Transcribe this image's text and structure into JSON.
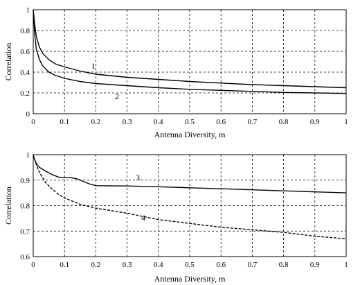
{
  "chart_data": [
    {
      "type": "line",
      "xlabel": "Antenna Diversity, m",
      "ylabel": "Correlation",
      "xlim": [
        0,
        1
      ],
      "ylim": [
        0,
        1
      ],
      "x_ticks": [
        "0",
        "0.1",
        "0.2",
        "0.3",
        "0.4",
        "0.5",
        "0.6",
        "0.7",
        "0.8",
        "0.9",
        "1"
      ],
      "y_ticks": [
        "0",
        "0.2",
        "0.4",
        "0.6",
        "0.8",
        "1"
      ],
      "grid": true,
      "series": [
        {
          "name": "1",
          "style": "solid",
          "x": [
            0,
            0.005,
            0.01,
            0.02,
            0.03,
            0.05,
            0.07,
            0.1,
            0.15,
            0.2,
            0.3,
            0.4,
            0.5,
            0.6,
            0.7,
            0.8,
            0.9,
            1.0
          ],
          "y": [
            1.0,
            0.85,
            0.74,
            0.64,
            0.58,
            0.52,
            0.48,
            0.45,
            0.41,
            0.38,
            0.35,
            0.33,
            0.31,
            0.295,
            0.28,
            0.27,
            0.26,
            0.25
          ]
        },
        {
          "name": "2",
          "style": "solid",
          "x": [
            0,
            0.005,
            0.01,
            0.02,
            0.03,
            0.05,
            0.07,
            0.1,
            0.15,
            0.2,
            0.3,
            0.4,
            0.5,
            0.6,
            0.7,
            0.8,
            0.9,
            1.0
          ],
          "y": [
            1.0,
            0.75,
            0.62,
            0.52,
            0.46,
            0.4,
            0.37,
            0.34,
            0.31,
            0.29,
            0.27,
            0.25,
            0.235,
            0.225,
            0.215,
            0.205,
            0.2,
            0.195
          ]
        }
      ]
    },
    {
      "type": "line",
      "xlabel": "Antenna Diversity, m",
      "ylabel": "Correlation",
      "xlim": [
        0,
        1
      ],
      "ylim": [
        0.6,
        1
      ],
      "x_ticks": [
        "0",
        "0.1",
        "0.2",
        "0.3",
        "0.4",
        "0.5",
        "0.6",
        "0.7",
        "0.8",
        "0.9",
        "1"
      ],
      "y_ticks": [
        "0.6",
        "0.7",
        "0.8",
        "0.9",
        "1"
      ],
      "grid": true,
      "series": [
        {
          "name": "3",
          "style": "solid",
          "x": [
            0,
            0.01,
            0.02,
            0.04,
            0.06,
            0.08,
            0.1,
            0.12,
            0.14,
            0.16,
            0.18,
            0.2,
            0.3,
            0.4,
            0.5,
            0.6,
            0.7,
            0.8,
            0.9,
            1.0
          ],
          "y": [
            0.995,
            0.965,
            0.95,
            0.935,
            0.922,
            0.912,
            0.91,
            0.91,
            0.905,
            0.895,
            0.885,
            0.878,
            0.877,
            0.874,
            0.87,
            0.866,
            0.862,
            0.858,
            0.854,
            0.85
          ],
          "label": "3."
        },
        {
          "name": "4",
          "style": "dashed",
          "x": [
            0,
            0.01,
            0.02,
            0.04,
            0.06,
            0.08,
            0.1,
            0.15,
            0.2,
            0.3,
            0.4,
            0.5,
            0.6,
            0.7,
            0.8,
            0.9,
            1.0
          ],
          "y": [
            1.0,
            0.96,
            0.93,
            0.89,
            0.865,
            0.845,
            0.83,
            0.805,
            0.79,
            0.77,
            0.745,
            0.73,
            0.715,
            0.705,
            0.695,
            0.68,
            0.67
          ],
          "label": "4"
        }
      ]
    }
  ]
}
